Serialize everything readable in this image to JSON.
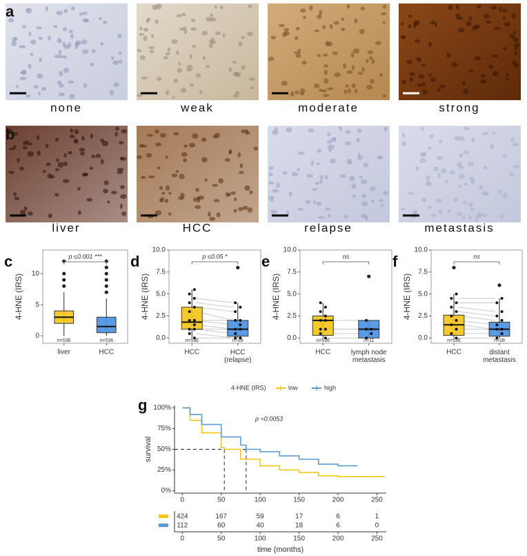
{
  "panels": {
    "a": {
      "letter": "a",
      "labels": [
        "none",
        "weak",
        "moderate",
        "strong"
      ]
    },
    "b": {
      "letter": "b",
      "labels": [
        "liver",
        "HCC",
        "relapse",
        "metastasis"
      ]
    }
  },
  "chart_data": [
    {
      "type": "box",
      "letter": "c",
      "ylabel": "4-HNE (IRS)",
      "ylim": [
        -1.2,
        13.8
      ],
      "yticks": [
        0,
        5,
        10
      ],
      "categories": [
        "liver",
        "HCC"
      ],
      "colors": [
        "#f5c518",
        "#4a90e2"
      ],
      "annotation": "p ≤0.001 ***",
      "n_labels": [
        "n=536",
        "n=536"
      ],
      "boxes": [
        {
          "min": 0,
          "q1": 2,
          "median": 3,
          "q3": 4,
          "max": 7,
          "outliers": [
            8,
            9,
            10,
            12
          ],
          "points": []
        },
        {
          "min": 0,
          "q1": 0.5,
          "median": 1.5,
          "q3": 3,
          "max": 6,
          "outliers": [
            7,
            8,
            9,
            10,
            11,
            12
          ],
          "points": []
        }
      ]
    },
    {
      "type": "box",
      "letter": "d",
      "ylabel": "4-HNE (IRS)",
      "ylim": [
        -0.6,
        10
      ],
      "yticks": [
        {
          "value": 0,
          "label": "0.0"
        },
        {
          "value": 2.5,
          "label": "2.5"
        },
        {
          "value": 5,
          "label": "5.0"
        },
        {
          "value": 7.5,
          "label": "7.5"
        },
        {
          "value": 10,
          "label": "10.0"
        }
      ],
      "categories": [
        "HCC",
        "HCC (relapse)"
      ],
      "colors": [
        "#f5c518",
        "#4a90e2"
      ],
      "annotation": "p ≤0.05 *",
      "n_labels": [
        "n=536",
        "n=39"
      ],
      "boxes": [
        {
          "min": 0,
          "q1": 1,
          "median": 1.8,
          "q3": 3.5,
          "max": 5.5,
          "outliers": [],
          "points": [
            0,
            0.5,
            1,
            1,
            1.5,
            2,
            2,
            3,
            3.5,
            4,
            4.5,
            5,
            5.5
          ]
        },
        {
          "min": 0,
          "q1": 0.2,
          "median": 1,
          "q3": 2,
          "max": 4,
          "outliers": [
            8
          ],
          "points": [
            0,
            0,
            0.5,
            1,
            1,
            1.5,
            2,
            2,
            3,
            3.5,
            4
          ]
        }
      ]
    },
    {
      "type": "box",
      "letter": "e",
      "ylabel": "4-HNE (IRS)",
      "ylim": [
        -0.6,
        10
      ],
      "yticks": [
        {
          "value": 0,
          "label": "0.0"
        },
        {
          "value": 2.5,
          "label": "2.5"
        },
        {
          "value": 5,
          "label": "5.0"
        },
        {
          "value": 7.5,
          "label": "7.5"
        },
        {
          "value": 10,
          "label": "10.0"
        }
      ],
      "categories": [
        "HCC",
        "lymph node metastasis"
      ],
      "colors": [
        "#f5c518",
        "#4a90e2"
      ],
      "annotation": "ns",
      "n_labels": [
        "n=536",
        "n=11"
      ],
      "boxes": [
        {
          "min": 0,
          "q1": 0.3,
          "median": 2,
          "q3": 2.5,
          "max": 4,
          "outliers": [],
          "points": [
            0,
            0.5,
            1,
            1,
            2,
            2,
            2.5,
            3,
            3.5,
            4
          ]
        },
        {
          "min": 0,
          "q1": 0,
          "median": 1,
          "q3": 2,
          "max": 2,
          "outliers": [
            7
          ],
          "points": [
            0,
            0.5,
            1,
            1,
            2
          ]
        }
      ]
    },
    {
      "type": "box",
      "letter": "f",
      "ylabel": "4-HNE (IRS)",
      "ylim": [
        -0.6,
        10
      ],
      "yticks": [
        {
          "value": 0,
          "label": "0.0"
        },
        {
          "value": 2.5,
          "label": "2.5"
        },
        {
          "value": 5,
          "label": "5.0"
        },
        {
          "value": 7.5,
          "label": "7.5"
        },
        {
          "value": 10,
          "label": "10.0"
        }
      ],
      "categories": [
        "HCC",
        "distant metastasis"
      ],
      "colors": [
        "#f5c518",
        "#4a90e2"
      ],
      "annotation": "ns",
      "n_labels": [
        "n=536",
        "n=28"
      ],
      "boxes": [
        {
          "min": 0,
          "q1": 0.3,
          "median": 1.5,
          "q3": 2.6,
          "max": 5,
          "outliers": [
            8
          ],
          "points": [
            0,
            0.5,
            1,
            1.5,
            2,
            2.5,
            3,
            3.5,
            4,
            4.5,
            5
          ]
        },
        {
          "min": 0,
          "q1": 0.2,
          "median": 1,
          "q3": 1.8,
          "max": 4.5,
          "outliers": [
            6
          ],
          "points": [
            0,
            0.5,
            1,
            1,
            1.5,
            2,
            2.5,
            3,
            4,
            4.5
          ]
        }
      ]
    },
    {
      "type": "line",
      "letter": "g",
      "step": true,
      "ylabel": "survival",
      "xlabel": "time (months)",
      "legend_title": "4-HNE (IRS)",
      "annotation": "p =0.0053",
      "xlim": [
        -10,
        262
      ],
      "xticks": [
        0,
        50,
        100,
        150,
        200,
        250
      ],
      "ylim": [
        -3,
        103
      ],
      "yticks": [
        {
          "value": 0,
          "label": "0%"
        },
        {
          "value": 25,
          "label": "25%"
        },
        {
          "value": 50,
          "label": "50%"
        },
        {
          "value": 75,
          "label": "75%"
        },
        {
          "value": 100,
          "label": "100%"
        }
      ],
      "medians": [
        54,
        82
      ],
      "median_level": 50,
      "series": [
        {
          "name": "low",
          "color": "#f5c518",
          "x": [
            0,
            10,
            25,
            50,
            54,
            75,
            100,
            125,
            150,
            175,
            200,
            260
          ],
          "values": [
            100,
            85,
            70,
            52,
            50,
            38,
            30,
            25,
            22,
            18,
            17,
            17
          ],
          "at_risk": [
            424,
            167,
            59,
            17,
            6,
            1
          ]
        },
        {
          "name": "high",
          "color": "#5b9bd5",
          "x": [
            0,
            10,
            25,
            50,
            75,
            82,
            100,
            125,
            150,
            175,
            200,
            225
          ],
          "values": [
            100,
            92,
            80,
            65,
            55,
            50,
            47,
            42,
            38,
            32,
            30,
            30
          ],
          "at_risk": [
            112,
            60,
            40,
            18,
            6,
            0
          ]
        }
      ]
    }
  ]
}
